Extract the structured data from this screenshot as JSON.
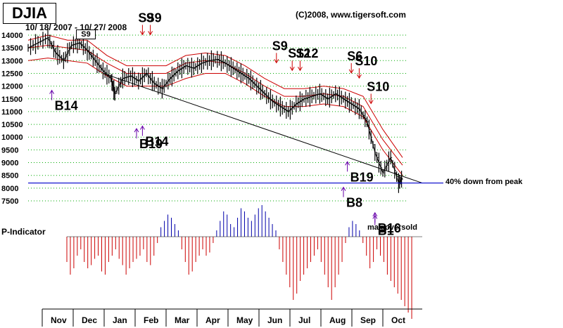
{
  "title": "DJIA",
  "date_range": "10/ 18/ 2007 - 10/ 27/ 2008",
  "copyright": "(C)2008, www.tigersoft.com",
  "p_indicator_label": "P-Indicator",
  "max_oversold_label": "max.oversold",
  "peak_label": "40% down from peak",
  "s9_box": "S9",
  "colors": {
    "price": "#000000",
    "bands": "#cc0000",
    "ma": "#ff0000",
    "hline": "#0000cc",
    "pos_bar": "#0000aa",
    "neg_bar": "#cc0000",
    "grid": "#00aa00",
    "buy": "#6600aa",
    "sell": "#cc0000"
  },
  "chart_data": {
    "type": "line",
    "title": "DJIA",
    "y_ticks": [
      "14000",
      "13500",
      "13000",
      "12500",
      "12000",
      "11500",
      "11000",
      "10500",
      "10000",
      "9500",
      "9000",
      "8500",
      "8000",
      "7500"
    ],
    "ylim": [
      7500,
      14000
    ],
    "x_months": [
      "Nov",
      "Dec",
      "Jan",
      "Feb",
      "Mar",
      "Apr",
      "May",
      "Jun",
      "Jul",
      "Aug",
      "Sep",
      "Oct"
    ],
    "price_series": [
      {
        "x": 0,
        "y": 13500
      },
      {
        "x": 5,
        "y": 13700
      },
      {
        "x": 10,
        "y": 13900
      },
      {
        "x": 14,
        "y": 13300
      },
      {
        "x": 18,
        "y": 13000
      },
      {
        "x": 22,
        "y": 13600
      },
      {
        "x": 26,
        "y": 13700
      },
      {
        "x": 30,
        "y": 13400
      },
      {
        "x": 34,
        "y": 13000
      },
      {
        "x": 38,
        "y": 12600
      },
      {
        "x": 42,
        "y": 12300
      },
      {
        "x": 44,
        "y": 11700
      },
      {
        "x": 48,
        "y": 12300
      },
      {
        "x": 52,
        "y": 12400
      },
      {
        "x": 56,
        "y": 12200
      },
      {
        "x": 60,
        "y": 12500
      },
      {
        "x": 64,
        "y": 12100
      },
      {
        "x": 68,
        "y": 11900
      },
      {
        "x": 72,
        "y": 12300
      },
      {
        "x": 76,
        "y": 12600
      },
      {
        "x": 80,
        "y": 12800
      },
      {
        "x": 84,
        "y": 12700
      },
      {
        "x": 88,
        "y": 12900
      },
      {
        "x": 92,
        "y": 13000
      },
      {
        "x": 96,
        "y": 13050
      },
      {
        "x": 100,
        "y": 12900
      },
      {
        "x": 104,
        "y": 12700
      },
      {
        "x": 108,
        "y": 12500
      },
      {
        "x": 112,
        "y": 12300
      },
      {
        "x": 116,
        "y": 12000
      },
      {
        "x": 120,
        "y": 11700
      },
      {
        "x": 124,
        "y": 11400
      },
      {
        "x": 128,
        "y": 11200
      },
      {
        "x": 132,
        "y": 11000
      },
      {
        "x": 136,
        "y": 11300
      },
      {
        "x": 140,
        "y": 11500
      },
      {
        "x": 144,
        "y": 11600
      },
      {
        "x": 148,
        "y": 11700
      },
      {
        "x": 152,
        "y": 11500
      },
      {
        "x": 156,
        "y": 11700
      },
      {
        "x": 160,
        "y": 11500
      },
      {
        "x": 164,
        "y": 11300
      },
      {
        "x": 168,
        "y": 11100
      },
      {
        "x": 172,
        "y": 10600
      },
      {
        "x": 176,
        "y": 9400
      },
      {
        "x": 180,
        "y": 8600
      },
      {
        "x": 184,
        "y": 9200
      },
      {
        "x": 188,
        "y": 8200
      },
      {
        "x": 190,
        "y": 8400
      }
    ],
    "upper_band": [
      {
        "x": 0,
        "y": 13800
      },
      {
        "x": 10,
        "y": 14000
      },
      {
        "x": 20,
        "y": 13800
      },
      {
        "x": 30,
        "y": 13800
      },
      {
        "x": 40,
        "y": 13200
      },
      {
        "x": 50,
        "y": 12800
      },
      {
        "x": 60,
        "y": 12800
      },
      {
        "x": 70,
        "y": 12800
      },
      {
        "x": 80,
        "y": 13200
      },
      {
        "x": 90,
        "y": 13300
      },
      {
        "x": 100,
        "y": 13200
      },
      {
        "x": 110,
        "y": 12800
      },
      {
        "x": 120,
        "y": 12300
      },
      {
        "x": 130,
        "y": 11900
      },
      {
        "x": 140,
        "y": 11900
      },
      {
        "x": 150,
        "y": 12000
      },
      {
        "x": 160,
        "y": 11900
      },
      {
        "x": 170,
        "y": 11600
      },
      {
        "x": 180,
        "y": 10300
      },
      {
        "x": 190,
        "y": 9200
      }
    ],
    "middle_band": [
      {
        "x": 0,
        "y": 13500
      },
      {
        "x": 10,
        "y": 13600
      },
      {
        "x": 20,
        "y": 13500
      },
      {
        "x": 30,
        "y": 13400
      },
      {
        "x": 40,
        "y": 12900
      },
      {
        "x": 50,
        "y": 12500
      },
      {
        "x": 60,
        "y": 12500
      },
      {
        "x": 70,
        "y": 12500
      },
      {
        "x": 80,
        "y": 12900
      },
      {
        "x": 90,
        "y": 13000
      },
      {
        "x": 100,
        "y": 12900
      },
      {
        "x": 110,
        "y": 12500
      },
      {
        "x": 120,
        "y": 12000
      },
      {
        "x": 130,
        "y": 11600
      },
      {
        "x": 140,
        "y": 11600
      },
      {
        "x": 150,
        "y": 11700
      },
      {
        "x": 160,
        "y": 11600
      },
      {
        "x": 170,
        "y": 11200
      },
      {
        "x": 180,
        "y": 9900
      },
      {
        "x": 190,
        "y": 8900
      }
    ],
    "lower_band": [
      {
        "x": 0,
        "y": 13000
      },
      {
        "x": 10,
        "y": 13100
      },
      {
        "x": 20,
        "y": 13000
      },
      {
        "x": 30,
        "y": 12900
      },
      {
        "x": 40,
        "y": 12400
      },
      {
        "x": 50,
        "y": 12000
      },
      {
        "x": 60,
        "y": 12000
      },
      {
        "x": 70,
        "y": 12000
      },
      {
        "x": 80,
        "y": 12300
      },
      {
        "x": 90,
        "y": 12500
      },
      {
        "x": 100,
        "y": 12500
      },
      {
        "x": 110,
        "y": 12100
      },
      {
        "x": 120,
        "y": 11600
      },
      {
        "x": 130,
        "y": 11200
      },
      {
        "x": 140,
        "y": 11200
      },
      {
        "x": 150,
        "y": 11300
      },
      {
        "x": 160,
        "y": 11200
      },
      {
        "x": 170,
        "y": 10800
      },
      {
        "x": 180,
        "y": 9500
      },
      {
        "x": 190,
        "y": 8500
      }
    ],
    "trend_line": [
      {
        "x": 38,
        "y": 12500
      },
      {
        "x": 200,
        "y": 8200
      }
    ],
    "p_indicator": [
      -40,
      -60,
      -50,
      -30,
      -20,
      -40,
      -50,
      -45,
      -35,
      -30,
      -55,
      -60,
      -40,
      -30,
      -20,
      -35,
      -45,
      -60,
      -50,
      -40,
      -35,
      -30,
      -20,
      -40,
      -45,
      -30,
      -10,
      15,
      25,
      35,
      30,
      20,
      10,
      -20,
      -40,
      -60,
      -55,
      -40,
      -30,
      -20,
      -30,
      -25,
      -10,
      10,
      25,
      40,
      35,
      20,
      15,
      30,
      45,
      40,
      30,
      25,
      35,
      45,
      50,
      40,
      30,
      20,
      10,
      -20,
      -40,
      -60,
      -80,
      -100,
      -90,
      -70,
      -60,
      -50,
      -40,
      -30,
      -20,
      -40,
      -60,
      -80,
      -100,
      -80,
      -60,
      -40,
      -10,
      15,
      25,
      20,
      10,
      -10,
      -30,
      -50,
      -40,
      -20,
      -30,
      -40,
      -60,
      -70,
      -80,
      -90,
      -100,
      -110,
      -120,
      -130
    ],
    "signals_sell": [
      {
        "label": "S9",
        "x": 58,
        "price": 13300
      },
      {
        "label": "S9",
        "x": 62,
        "price": 13300
      },
      {
        "label": "S9",
        "x": 126,
        "price": 12200
      },
      {
        "label": "S12",
        "x": 134,
        "price": 11900
      },
      {
        "label": "S12",
        "x": 138,
        "price": 11900
      },
      {
        "label": "S6",
        "x": 164,
        "price": 11800
      },
      {
        "label": "S10",
        "x": 168,
        "price": 11600
      },
      {
        "label": "S10",
        "x": 174,
        "price": 10600
      }
    ],
    "signals_buy": [
      {
        "label": "B14",
        "x": 12,
        "price": 12000
      },
      {
        "label": "B14",
        "x": 58,
        "price": 10600
      },
      {
        "label": "B19",
        "x": 55,
        "price": 10500
      },
      {
        "label": "B19",
        "x": 162,
        "price": 9200
      },
      {
        "label": "B8",
        "x": 160,
        "price": 8200
      },
      {
        "label": "B16",
        "x": 176,
        "price": 7200
      },
      {
        "label": "B1",
        "x": 176,
        "price": 7100
      }
    ],
    "hline_value": 8200
  }
}
